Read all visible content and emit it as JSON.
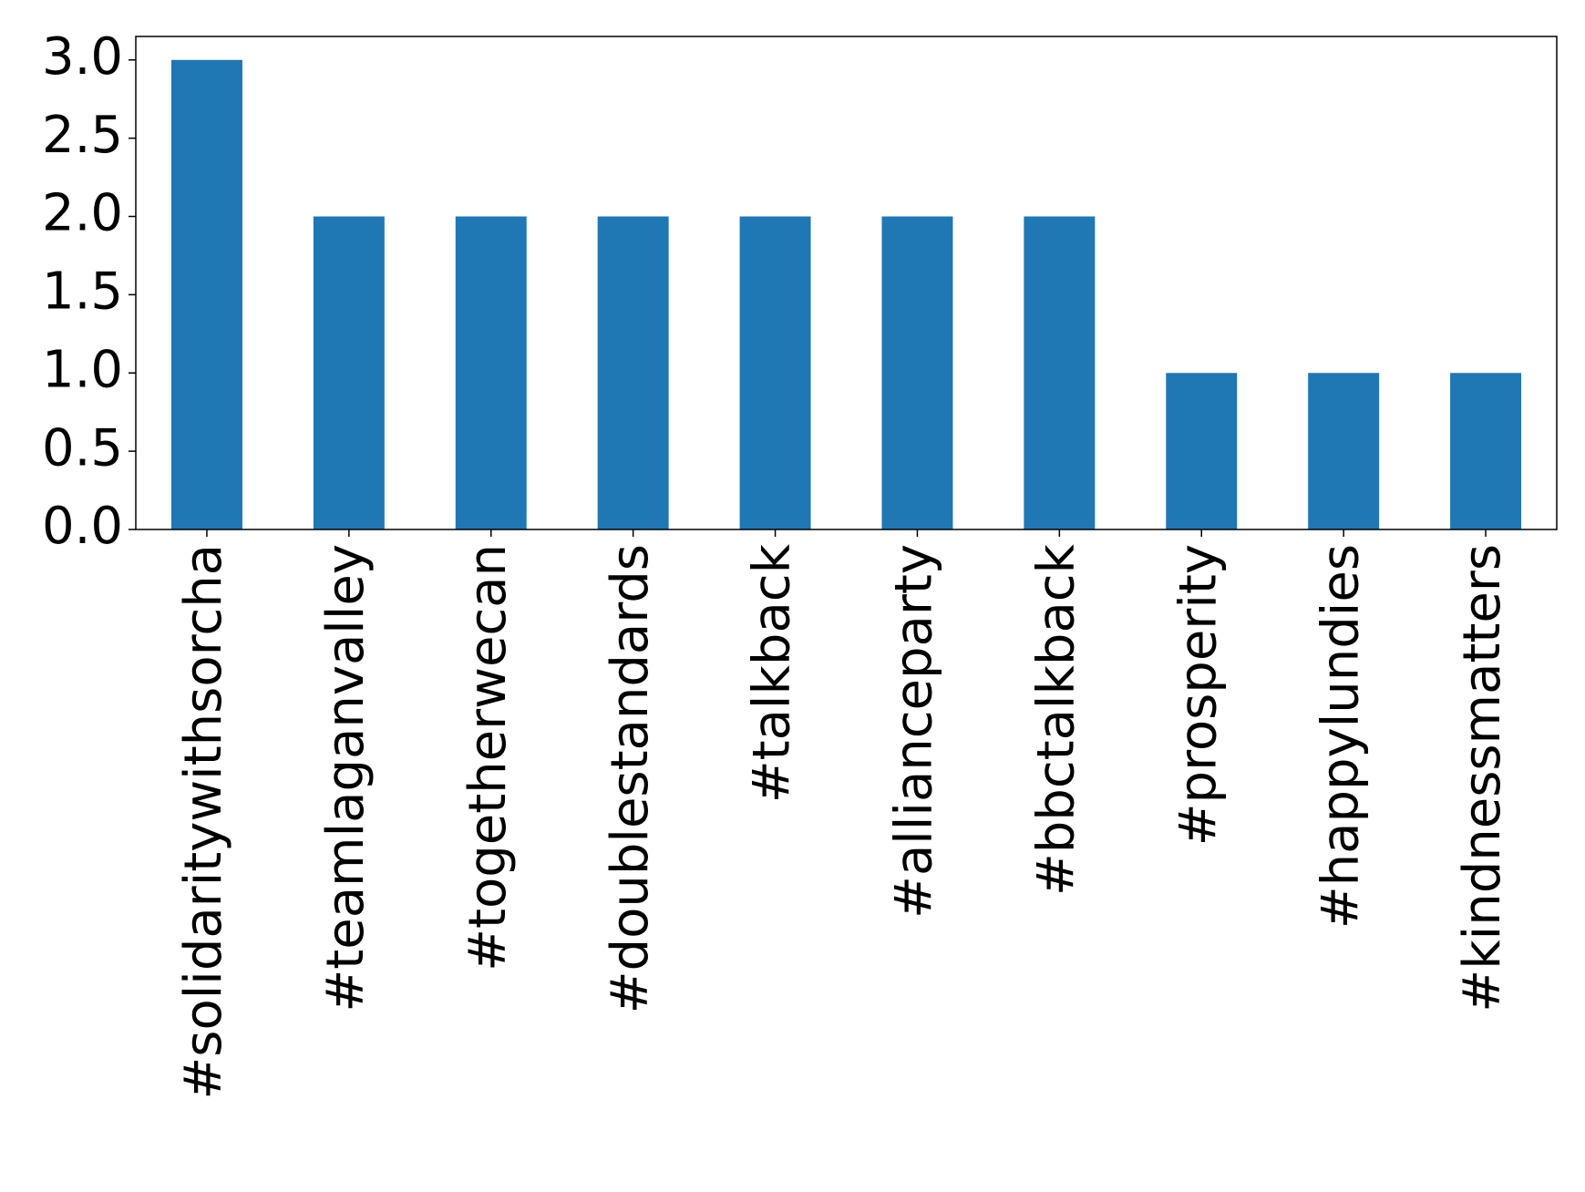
{
  "chart_data": {
    "type": "bar",
    "categories": [
      "#solidaritywithsorcha",
      "#teamlaganvalley",
      "#togetherwecan",
      "#doublestandards",
      "#talkback",
      "#allianceparty",
      "#bbctalkback",
      "#prosperity",
      "#happylundies",
      "#kindnessmatters"
    ],
    "values": [
      3,
      2,
      2,
      2,
      2,
      2,
      2,
      1,
      1,
      1
    ],
    "color": "#1f77b4",
    "ylim": [
      0,
      3.15
    ],
    "yticks": [
      {
        "value": 0,
        "label": "0.0"
      },
      {
        "value": 0.5,
        "label": "0.5"
      },
      {
        "value": 1,
        "label": "1.0"
      },
      {
        "value": 1.5,
        "label": "1.5"
      },
      {
        "value": 2,
        "label": "2.0"
      },
      {
        "value": 2.5,
        "label": "2.5"
      },
      {
        "value": 3,
        "label": "3.0"
      }
    ],
    "grid": false
  }
}
